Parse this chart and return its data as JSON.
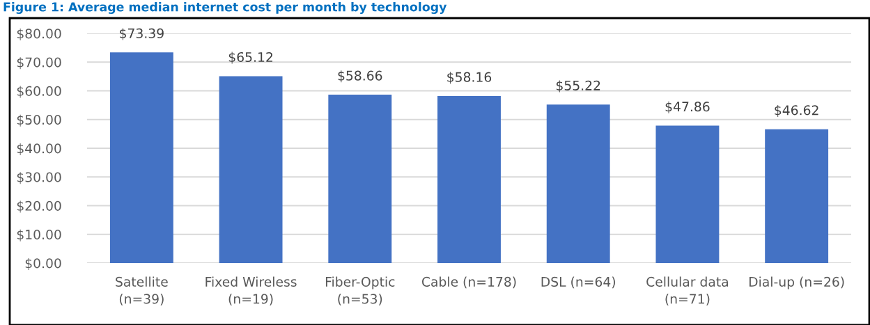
{
  "chart_data": {
    "type": "bar",
    "title": "Figure 1: Average median internet cost per month by technology",
    "categories": [
      "Satellite\n(n=39)",
      "Fixed Wireless\n(n=19)",
      "Fiber-Optic\n(n=53)",
      "Cable (n=178)",
      "DSL (n=64)",
      "Cellular data\n(n=71)",
      "Dial-up (n=26)"
    ],
    "values": [
      73.39,
      65.12,
      58.66,
      58.16,
      55.22,
      47.86,
      46.62
    ],
    "value_labels": [
      "$73.39",
      "$65.12",
      "$58.66",
      "$58.16",
      "$55.22",
      "$47.86",
      "$46.62"
    ],
    "color": "#4472c4",
    "ylim": [
      0,
      80
    ],
    "yticks": [
      {
        "value": 0,
        "label": "$0.00"
      },
      {
        "value": 10,
        "label": "$10.00"
      },
      {
        "value": 20,
        "label": "$20.00"
      },
      {
        "value": 30,
        "label": "$30.00"
      },
      {
        "value": 40,
        "label": "$40.00"
      },
      {
        "value": 50,
        "label": "$50.00"
      },
      {
        "value": 60,
        "label": "$60.00"
      },
      {
        "value": 70,
        "label": "$70.00"
      },
      {
        "value": 80,
        "label": "$80.00"
      }
    ],
    "grid": "y",
    "legend": false
  }
}
